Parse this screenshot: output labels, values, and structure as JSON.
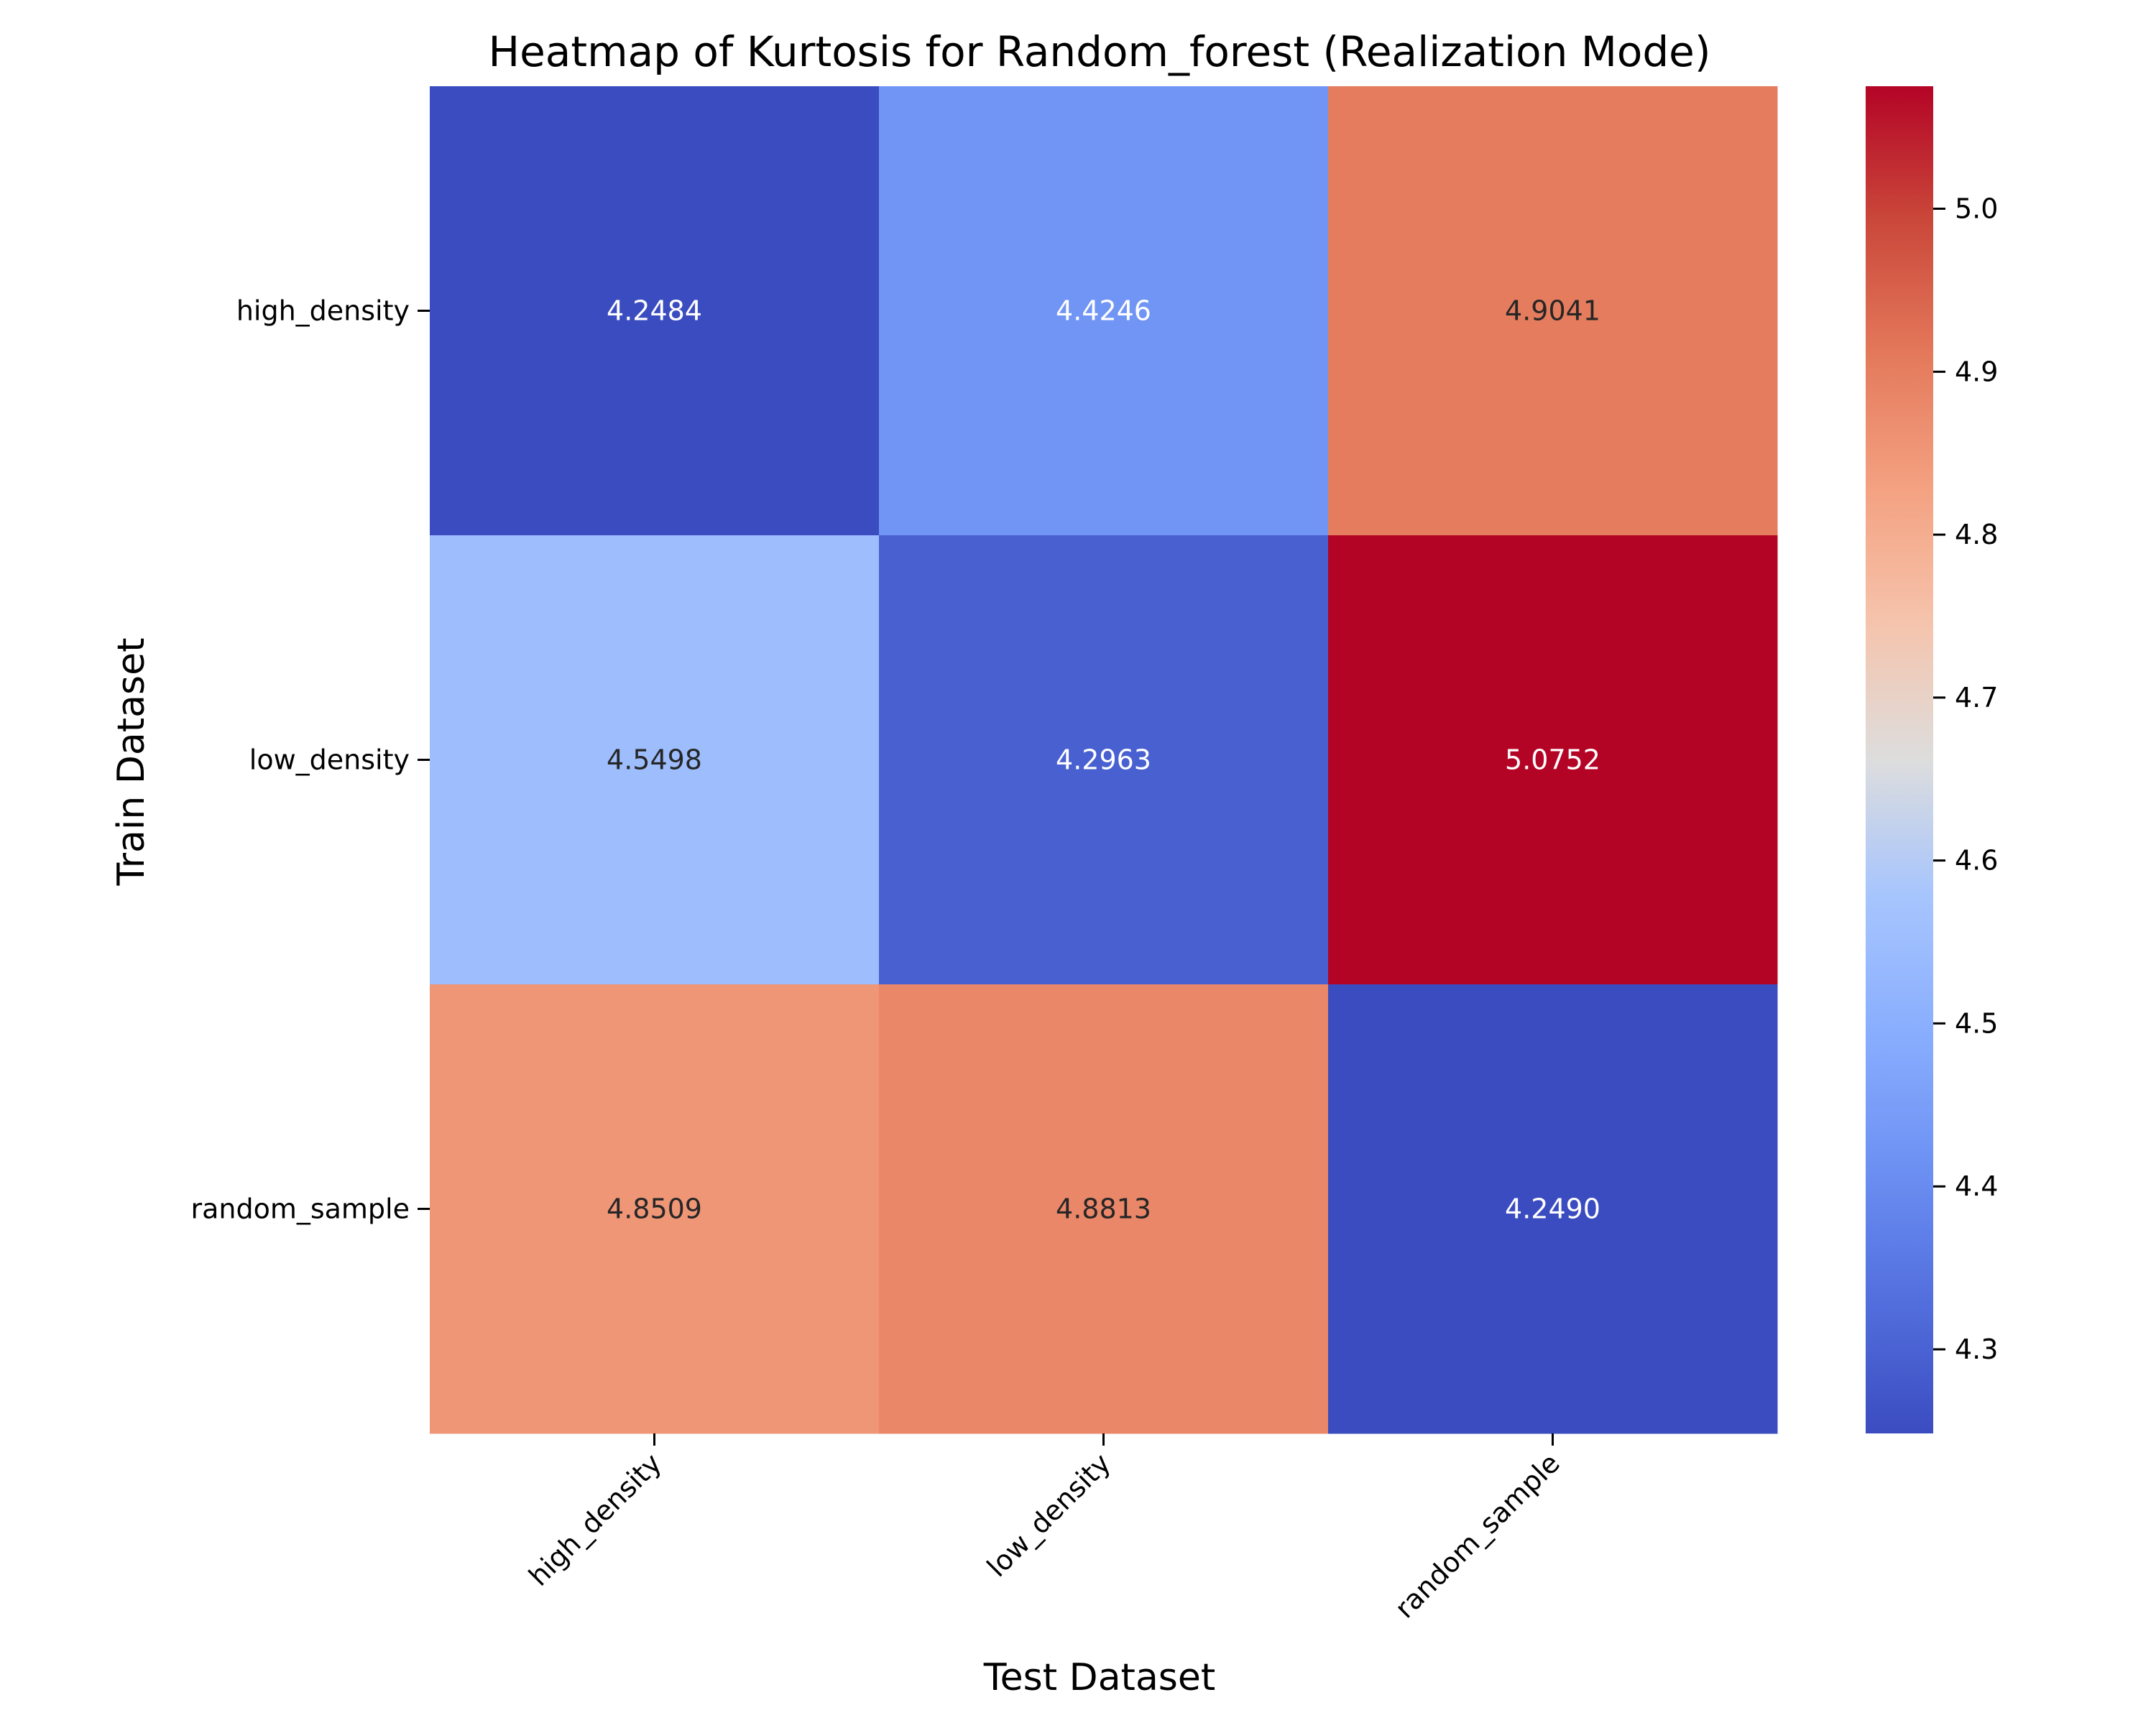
{
  "chart_data": {
    "type": "heatmap",
    "title": "Heatmap of Kurtosis for Random_forest (Realization Mode)",
    "xlabel": "Test Dataset",
    "ylabel": "Train Dataset",
    "x_categories": [
      "high_density",
      "low_density",
      "random_sample"
    ],
    "y_categories": [
      "high_density",
      "low_density",
      "random_sample"
    ],
    "values": [
      [
        4.2484,
        4.4246,
        4.9041
      ],
      [
        4.5498,
        4.2963,
        5.0752
      ],
      [
        4.8509,
        4.8813,
        4.249
      ]
    ],
    "value_labels": [
      [
        "4.2484",
        "4.4246",
        "4.9041"
      ],
      [
        "4.5498",
        "4.2963",
        "5.0752"
      ],
      [
        "4.8509",
        "4.8813",
        "4.2490"
      ]
    ],
    "colormap": "coolwarm",
    "colorbar": {
      "range": [
        4.2484,
        5.0752
      ],
      "ticks": [
        4.3,
        4.4,
        4.5,
        4.6,
        4.7,
        4.8,
        4.9,
        5.0
      ],
      "tick_labels": [
        "4.3",
        "4.4",
        "4.5",
        "4.6",
        "4.7",
        "4.8",
        "4.9",
        "5.0"
      ],
      "placement": "right"
    }
  }
}
